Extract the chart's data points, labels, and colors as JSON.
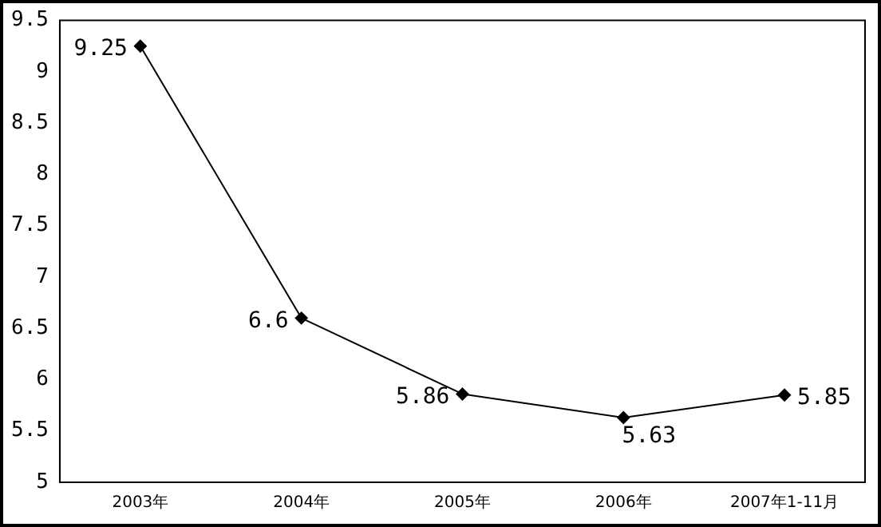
{
  "chart_data": {
    "type": "line",
    "categories": [
      "2003年",
      "2004年",
      "2005年",
      "2006年",
      "2007年1-11月"
    ],
    "series": [
      {
        "color": "#000000",
        "values": [
          9.25,
          6.6,
          5.86,
          5.63,
          5.85
        ]
      }
    ],
    "ylim": [
      5,
      9.5
    ],
    "yticks": [
      5,
      5.5,
      6,
      6.5,
      7,
      7.5,
      8,
      8.5,
      9,
      9.5
    ],
    "grid": false,
    "legend": false,
    "marker": "diamond",
    "line_style": "solid",
    "data_labels": true
  }
}
